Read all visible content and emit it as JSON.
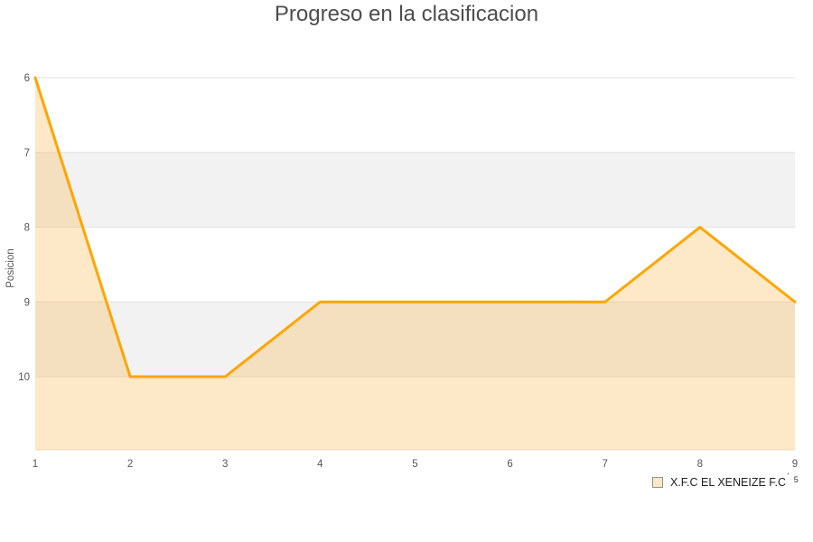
{
  "title": "Progreso en la clasificacion",
  "chart_data": {
    "type": "line",
    "x": [
      1,
      2,
      3,
      4,
      5,
      6,
      7,
      8,
      9
    ],
    "series": [
      {
        "name": "X.F.C EL XENEIZE F.C",
        "values": [
          6,
          10,
          10,
          9,
          9,
          9,
          9,
          8,
          9
        ]
      }
    ],
    "title": "Progreso en la clasificacion",
    "xlabel": "",
    "ylabel": "Posicion",
    "y_ticks": [
      6,
      7,
      8,
      9,
      10
    ],
    "x_ticks": [
      1,
      2,
      3,
      4,
      5,
      6,
      7,
      8,
      9
    ],
    "ylim": [
      6,
      11
    ],
    "xlim": [
      1,
      9
    ],
    "y_axis_inverted": true,
    "grid": "horizontal-bands",
    "legend_position": "bottom-right",
    "line_color": "#FFA500",
    "area_fill": "rgba(250,178,68,0.30)",
    "band_color": "#f2f2f2",
    "grid_color": "#e2e2e2"
  },
  "legend": {
    "label": "X.F.C EL XENEIZE F.C",
    "mark": "´",
    "sup": "5",
    "swatch_fill": "#fbe8c8",
    "swatch_border": "#919191"
  },
  "colors": {
    "title_text": "#4d4d4d",
    "axis_text": "#555555",
    "legend_text": "#222222"
  }
}
